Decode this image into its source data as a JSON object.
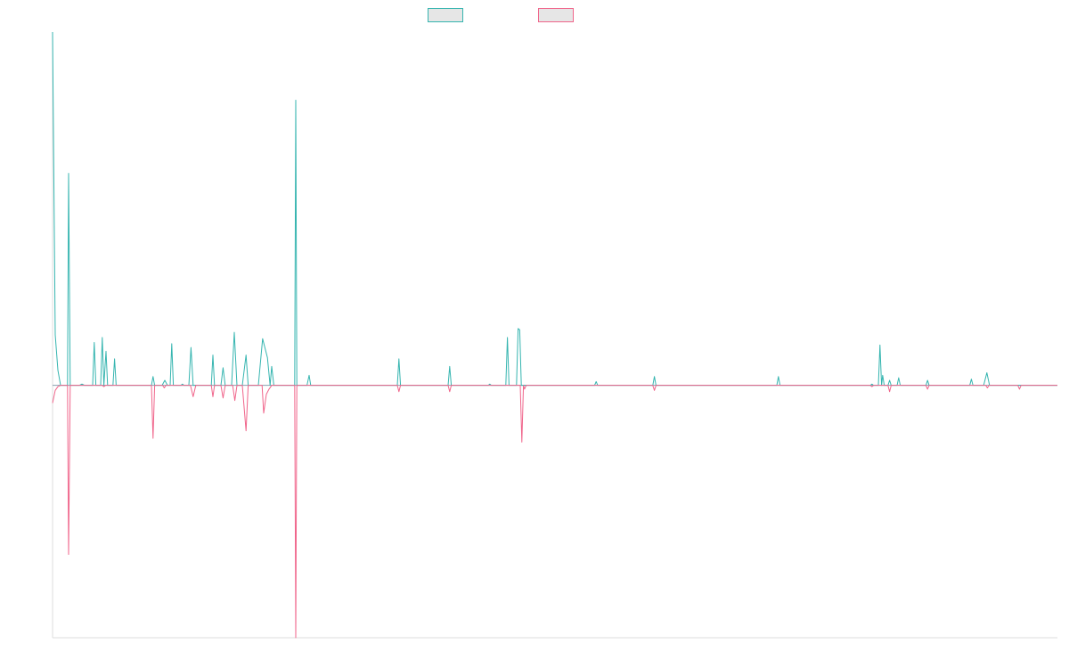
{
  "chart_data": {
    "type": "line",
    "title": "",
    "xlabel": "",
    "ylabel": "",
    "grid": false,
    "legend_position": "top-center",
    "ylim": [
      -10,
      14
    ],
    "xlim": [
      0,
      188
    ],
    "series": [
      {
        "color": "#36b5b0",
        "points": [
          [
            0,
            14
          ],
          [
            0.5,
            2
          ],
          [
            1,
            0.6
          ],
          [
            1.5,
            0
          ],
          [
            2,
            0
          ],
          [
            2.8,
            0
          ],
          [
            3,
            8.4
          ],
          [
            3.3,
            0
          ],
          [
            5,
            0
          ],
          [
            5.5,
            0.05
          ],
          [
            6,
            0
          ],
          [
            7.5,
            0
          ],
          [
            7.8,
            1.7
          ],
          [
            8.1,
            0
          ],
          [
            9,
            0
          ],
          [
            9.3,
            1.9
          ],
          [
            9.6,
            0
          ],
          [
            10,
            1.35
          ],
          [
            10.3,
            0
          ],
          [
            11.3,
            0
          ],
          [
            11.6,
            1.05
          ],
          [
            11.9,
            0
          ],
          [
            18.5,
            0
          ],
          [
            18.8,
            0.35
          ],
          [
            19.1,
            0
          ],
          [
            20.5,
            0
          ],
          [
            21,
            0.2
          ],
          [
            21.5,
            0
          ],
          [
            22,
            0
          ],
          [
            22.3,
            1.65
          ],
          [
            22.6,
            0
          ],
          [
            24,
            0
          ],
          [
            24.3,
            0.05
          ],
          [
            24.6,
            0
          ],
          [
            25.5,
            0
          ],
          [
            25.9,
            1.5
          ],
          [
            26.3,
            0
          ],
          [
            29.7,
            0
          ],
          [
            30,
            1.2
          ],
          [
            30.3,
            0
          ],
          [
            31.5,
            0
          ],
          [
            31.9,
            0.7
          ],
          [
            32.3,
            0
          ],
          [
            33.5,
            0
          ],
          [
            34,
            2.1
          ],
          [
            34.5,
            0
          ],
          [
            35.5,
            0
          ],
          [
            36.2,
            1.2
          ],
          [
            36.6,
            0
          ],
          [
            38.5,
            0
          ],
          [
            39.3,
            1.85
          ],
          [
            40.2,
            1.1
          ],
          [
            40.7,
            0
          ],
          [
            41,
            0.75
          ],
          [
            41.4,
            0
          ],
          [
            45.3,
            0
          ],
          [
            45.5,
            11.3
          ],
          [
            45.7,
            0
          ],
          [
            47.6,
            0
          ],
          [
            48,
            0.4
          ],
          [
            48.3,
            0
          ],
          [
            64.5,
            0
          ],
          [
            64.8,
            1.05
          ],
          [
            65.1,
            0
          ],
          [
            74,
            0
          ],
          [
            74.3,
            0.75
          ],
          [
            74.6,
            0
          ],
          [
            81.5,
            0
          ],
          [
            81.8,
            0.05
          ],
          [
            82.1,
            0
          ],
          [
            84.8,
            0
          ],
          [
            85.1,
            1.9
          ],
          [
            85.4,
            0
          ],
          [
            86.8,
            0
          ],
          [
            87.1,
            2.25
          ],
          [
            87.4,
            2.2
          ],
          [
            87.7,
            0
          ],
          [
            101.4,
            0
          ],
          [
            101.7,
            0.15
          ],
          [
            102,
            0
          ],
          [
            112.3,
            0
          ],
          [
            112.6,
            0.35
          ],
          [
            112.9,
            0
          ],
          [
            135.5,
            0
          ],
          [
            135.8,
            0.35
          ],
          [
            136.1,
            0
          ],
          [
            153,
            0
          ],
          [
            153.3,
            0.05
          ],
          [
            153.6,
            0
          ],
          [
            154.5,
            0
          ],
          [
            154.8,
            1.6
          ],
          [
            155.1,
            0
          ],
          [
            155.3,
            0.4
          ],
          [
            155.6,
            0
          ],
          [
            156.3,
            0
          ],
          [
            156.6,
            0.2
          ],
          [
            156.9,
            0
          ],
          [
            158,
            0
          ],
          [
            158.3,
            0.3
          ],
          [
            158.6,
            0
          ],
          [
            163.4,
            0
          ],
          [
            163.7,
            0.2
          ],
          [
            164,
            0
          ],
          [
            171.6,
            0
          ],
          [
            171.9,
            0.25
          ],
          [
            172.2,
            0
          ],
          [
            174.2,
            0
          ],
          [
            174.8,
            0.5
          ],
          [
            175.3,
            0
          ],
          [
            188,
            0
          ]
        ]
      },
      {
        "color": "#f0658b",
        "points": [
          [
            0,
            -0.7
          ],
          [
            0.5,
            -0.2
          ],
          [
            1,
            -0.05
          ],
          [
            1.5,
            0
          ],
          [
            2,
            0
          ],
          [
            2.8,
            0
          ],
          [
            3,
            -6.7
          ],
          [
            3.3,
            0
          ],
          [
            9.3,
            0
          ],
          [
            9.6,
            -0.05
          ],
          [
            9.9,
            0
          ],
          [
            18.5,
            0
          ],
          [
            18.8,
            -2.1
          ],
          [
            19.1,
            0
          ],
          [
            20.6,
            0
          ],
          [
            20.9,
            -0.1
          ],
          [
            21.2,
            0
          ],
          [
            25.8,
            0
          ],
          [
            26.3,
            -0.45
          ],
          [
            26.8,
            0
          ],
          [
            29.7,
            0
          ],
          [
            30,
            -0.45
          ],
          [
            30.3,
            0
          ],
          [
            31.5,
            0
          ],
          [
            31.9,
            -0.5
          ],
          [
            32.3,
            0
          ],
          [
            33.7,
            0
          ],
          [
            34.1,
            -0.6
          ],
          [
            34.5,
            0
          ],
          [
            35.5,
            0
          ],
          [
            36.2,
            -1.8
          ],
          [
            36.6,
            0
          ],
          [
            39.2,
            0
          ],
          [
            39.5,
            -1.1
          ],
          [
            40,
            -0.35
          ],
          [
            40.5,
            -0.15
          ],
          [
            41,
            0
          ],
          [
            45.3,
            0
          ],
          [
            45.5,
            -10
          ],
          [
            45.7,
            0
          ],
          [
            64.5,
            0
          ],
          [
            64.8,
            -0.25
          ],
          [
            65.1,
            0
          ],
          [
            74,
            0
          ],
          [
            74.3,
            -0.25
          ],
          [
            74.6,
            0
          ],
          [
            87.5,
            0
          ],
          [
            87.8,
            -2.25
          ],
          [
            88.1,
            0
          ],
          [
            88.3,
            -0.15
          ],
          [
            88.6,
            0
          ],
          [
            112.3,
            0
          ],
          [
            112.6,
            -0.2
          ],
          [
            112.9,
            0
          ],
          [
            153,
            0
          ],
          [
            153.3,
            -0.05
          ],
          [
            153.6,
            0
          ],
          [
            156.3,
            0
          ],
          [
            156.6,
            -0.25
          ],
          [
            156.9,
            0
          ],
          [
            163.4,
            0
          ],
          [
            163.7,
            -0.15
          ],
          [
            164,
            0
          ],
          [
            174.6,
            0
          ],
          [
            174.9,
            -0.1
          ],
          [
            175.2,
            0
          ],
          [
            180.6,
            0
          ],
          [
            180.9,
            -0.15
          ],
          [
            181.2,
            0
          ],
          [
            188,
            0
          ]
        ]
      }
    ]
  }
}
